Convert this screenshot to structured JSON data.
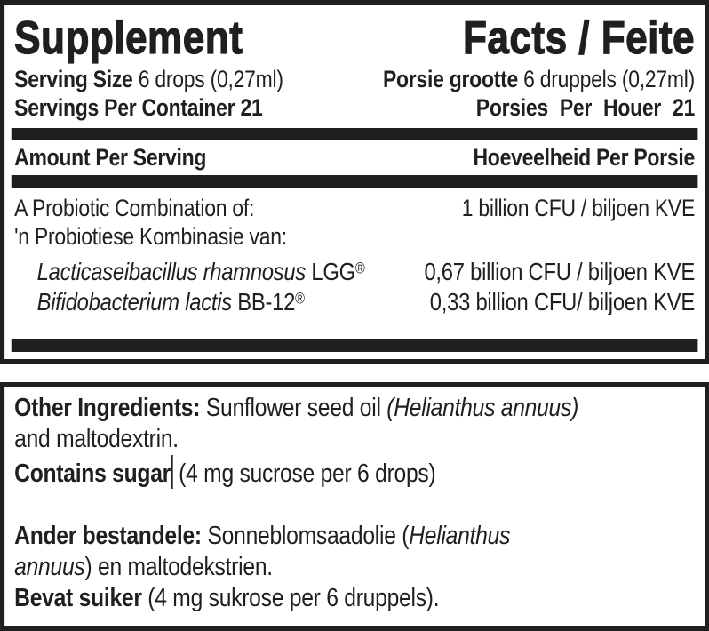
{
  "colors": {
    "ink": "#211e1f",
    "background": "#ffffff"
  },
  "supplement_panel": {
    "title": {
      "left": "Supplement",
      "right": "Facts / Feite"
    },
    "serving_size": {
      "en_label": "Serving Size",
      "en_value": "6 drops (0,27ml)",
      "af_label": "Porsie grootte",
      "af_value": "6 druppels (0,27ml)"
    },
    "servings_per_container": {
      "en": "Servings Per Container 21",
      "af": "Porsies Per Houer 21"
    },
    "column_header": {
      "en": "Amount Per Serving",
      "af": "Hoeveelheid Per Porsie"
    },
    "combination": {
      "en": "A Probiotic Combination of:",
      "af": "'n Probiotiese Kombinasie van:",
      "amount": "1 billion CFU / biljoen KVE"
    },
    "strains": [
      {
        "species": "Lacticaseibacillus rhamnosus",
        "code": "LGG",
        "reg_mark": "®",
        "amount": "0,67 billion CFU / biljoen KVE"
      },
      {
        "species": "Bifidobacterium lactis",
        "code": "BB-12",
        "reg_mark": "®",
        "amount": "0,33 billion CFU/ biljoen KVE"
      }
    ]
  },
  "ingredients_panel": {
    "en": {
      "label": "Other Ingredients:",
      "text": "Sunflower seed oil",
      "botanical": "(Helianthus annuus)",
      "line2": "and maltodextrin.",
      "sugar_label": "Contains sugar",
      "sugar_text": "(4 mg sucrose per 6 drops)"
    },
    "af": {
      "label": "Ander bestandele:",
      "text": "Sonneblomsaadolie (",
      "botanical_line1": "Helianthus",
      "botanical_line2": "annuus",
      "line2_rest": ") en maltodekstrien.",
      "sugar_label": "Bevat suiker",
      "sugar_text": "(4 mg sukrose per 6 druppels)."
    }
  }
}
